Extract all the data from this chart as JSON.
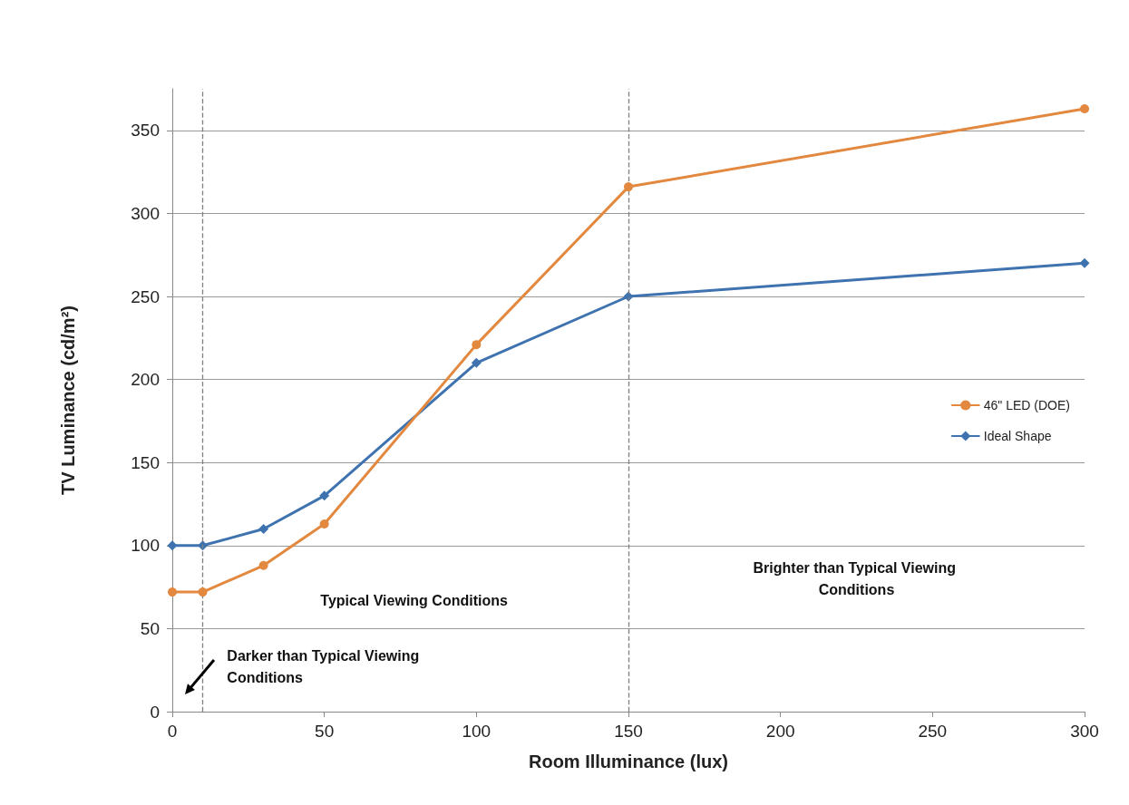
{
  "chart_data": {
    "type": "line",
    "xlabel": "Room Illuminance (lux)",
    "ylabel": "TV Luminance (cd/m²)",
    "x": [
      0,
      10,
      30,
      50,
      100,
      150,
      300
    ],
    "series": [
      {
        "name": "46\" LED (DOE)",
        "color": "#e3883f",
        "marker": "circle",
        "values": [
          72,
          72,
          88,
          113,
          221,
          316,
          363
        ]
      },
      {
        "name": "Ideal Shape",
        "color": "#3f73b0",
        "marker": "diamond",
        "values": [
          100,
          100,
          110,
          130,
          210,
          250,
          270
        ]
      }
    ],
    "xlim": [
      0,
      300
    ],
    "xticks": [
      0,
      50,
      100,
      150,
      200,
      250,
      300
    ],
    "ylim": [
      0,
      375
    ],
    "yticks": [
      0,
      50,
      100,
      150,
      200,
      250,
      300,
      350
    ],
    "grid": "y",
    "legend": "right",
    "line_style": "solid",
    "ref_lines": [
      {
        "axis": "x",
        "value": 10,
        "color": "#808080",
        "line_style": "dashed"
      },
      {
        "axis": "x",
        "value": 150,
        "color": "#808080",
        "line_style": "dashed"
      }
    ],
    "annotations": [
      "Typical Viewing Conditions",
      "Brighter than Typical Viewing Conditions",
      "Darker than Typical Viewing Conditions"
    ]
  }
}
